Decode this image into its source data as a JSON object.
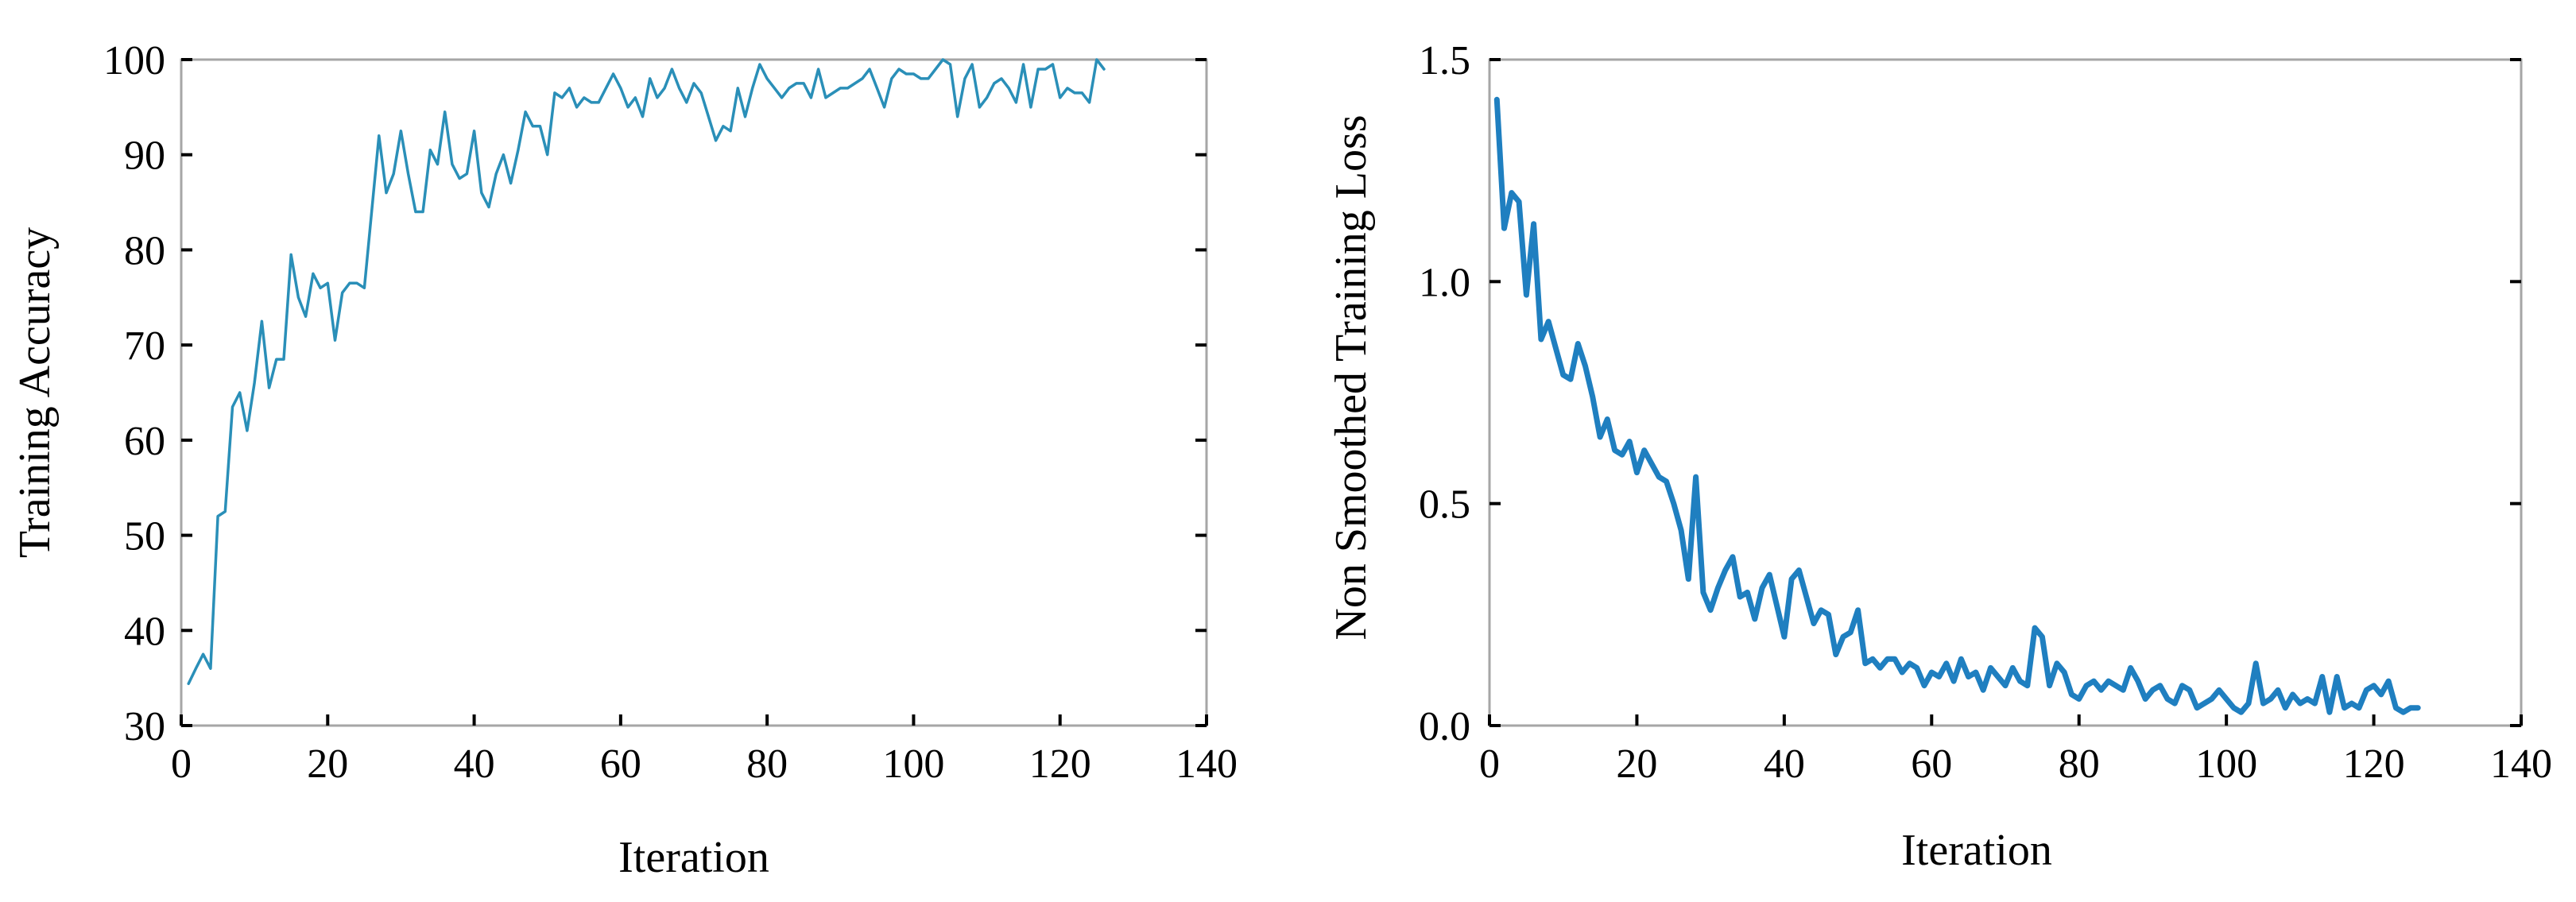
{
  "chart_data": [
    {
      "type": "line",
      "xlabel": "Iteration",
      "ylabel": "Training Accuracy",
      "xlim": [
        0,
        140
      ],
      "ylim": [
        30,
        100
      ],
      "xticks": [
        "0",
        "20",
        "40",
        "60",
        "80",
        "100",
        "120",
        "140"
      ],
      "yticks": [
        "30",
        "40",
        "50",
        "60",
        "70",
        "80",
        "90",
        "100"
      ],
      "grid": false,
      "color": "#2a8fb8",
      "series": [
        {
          "x": [
            1,
            2,
            3,
            4,
            5,
            6,
            7,
            8,
            9,
            10,
            11,
            12,
            13,
            14,
            15,
            16,
            17,
            18,
            19,
            20,
            21,
            22,
            23,
            24,
            25,
            26,
            27,
            28,
            29,
            30,
            31,
            32,
            33,
            34,
            35,
            36,
            37,
            38,
            39,
            40,
            41,
            42,
            43,
            44,
            45,
            46,
            47,
            48,
            49,
            50,
            51,
            52,
            53,
            54,
            55,
            56,
            57,
            58,
            59,
            60,
            61,
            62,
            63,
            64,
            65,
            66,
            67,
            68,
            69,
            70,
            71,
            72,
            73,
            74,
            75,
            76,
            77,
            78,
            79,
            80,
            81,
            82,
            83,
            84,
            85,
            86,
            87,
            88,
            89,
            90,
            91,
            92,
            93,
            94,
            95,
            96,
            97,
            98,
            99,
            100,
            101,
            102,
            103,
            104,
            105,
            106,
            107,
            108,
            109,
            110,
            111,
            112,
            113,
            114,
            115,
            116,
            117,
            118,
            119,
            120,
            121,
            122,
            123,
            124,
            125,
            126
          ],
          "y": [
            34.4,
            36.0,
            37.5,
            36.0,
            52.0,
            52.5,
            63.5,
            65.0,
            61.0,
            66.0,
            72.5,
            65.5,
            68.5,
            68.5,
            79.5,
            75.0,
            73.0,
            77.5,
            76.0,
            76.5,
            70.5,
            75.5,
            76.5,
            76.5,
            76.0,
            84.0,
            92.0,
            86.0,
            88.0,
            92.5,
            88.0,
            84.0,
            84.0,
            90.5,
            89.0,
            94.5,
            89.0,
            87.5,
            88.0,
            92.5,
            86.0,
            84.5,
            88.0,
            90.0,
            87.0,
            90.5,
            94.5,
            93.0,
            93.0,
            90.0,
            96.5,
            96.0,
            97.0,
            95.0,
            96.0,
            95.5,
            95.5,
            97.0,
            98.5,
            97.0,
            95.0,
            96.0,
            94.0,
            98.0,
            96.0,
            97.0,
            99.0,
            97.0,
            95.5,
            97.5,
            96.5,
            94.0,
            91.5,
            93.0,
            92.5,
            97.0,
            94.0,
            97.0,
            99.5,
            98.0,
            97.0,
            96.0,
            97.0,
            97.5,
            97.5,
            96.0,
            99.0,
            96.0,
            96.5,
            97.0,
            97.0,
            97.5,
            98.0,
            99.0,
            97.0,
            95.0,
            98.0,
            99.0,
            98.5,
            98.5,
            98.0,
            98.0,
            99.0,
            100.0,
            99.5,
            94.0,
            98.0,
            99.5,
            95.0,
            96.0,
            97.5,
            98.0,
            97.0,
            95.5,
            99.5,
            95.0,
            99.0,
            99.0,
            99.5,
            96.0,
            97.0,
            96.5,
            96.5,
            95.5,
            100.0,
            99.0
          ]
        }
      ]
    },
    {
      "type": "line",
      "xlabel": "Iteration",
      "ylabel": "Non Smoothed Training Loss",
      "xlim": [
        0,
        140
      ],
      "ylim": [
        0,
        1.5
      ],
      "xticks": [
        "0",
        "20",
        "40",
        "60",
        "80",
        "100",
        "120",
        "140"
      ],
      "yticks": [
        "0.0",
        "0.5",
        "1.0",
        "1.5"
      ],
      "grid": false,
      "color": "#1f7fc0",
      "series": [
        {
          "x": [
            1,
            2,
            3,
            4,
            5,
            6,
            7,
            8,
            9,
            10,
            11,
            12,
            13,
            14,
            15,
            16,
            17,
            18,
            19,
            20,
            21,
            22,
            23,
            24,
            25,
            26,
            27,
            28,
            29,
            30,
            31,
            32,
            33,
            34,
            35,
            36,
            37,
            38,
            39,
            40,
            41,
            42,
            43,
            44,
            45,
            46,
            47,
            48,
            49,
            50,
            51,
            52,
            53,
            54,
            55,
            56,
            57,
            58,
            59,
            60,
            61,
            62,
            63,
            64,
            65,
            66,
            67,
            68,
            69,
            70,
            71,
            72,
            73,
            74,
            75,
            76,
            77,
            78,
            79,
            80,
            81,
            82,
            83,
            84,
            85,
            86,
            87,
            88,
            89,
            90,
            91,
            92,
            93,
            94,
            95,
            96,
            97,
            98,
            99,
            100,
            101,
            102,
            103,
            104,
            105,
            106,
            107,
            108,
            109,
            110,
            111,
            112,
            113,
            114,
            115,
            116,
            117,
            118,
            119,
            120,
            121,
            122,
            123,
            124,
            125,
            126
          ],
          "y": [
            1.41,
            1.12,
            1.2,
            1.18,
            0.97,
            1.13,
            0.87,
            0.91,
            0.85,
            0.79,
            0.78,
            0.86,
            0.81,
            0.74,
            0.65,
            0.69,
            0.62,
            0.61,
            0.64,
            0.57,
            0.62,
            0.59,
            0.56,
            0.55,
            0.5,
            0.44,
            0.33,
            0.56,
            0.3,
            0.26,
            0.31,
            0.35,
            0.38,
            0.29,
            0.3,
            0.24,
            0.31,
            0.34,
            0.27,
            0.2,
            0.33,
            0.35,
            0.29,
            0.23,
            0.26,
            0.25,
            0.16,
            0.2,
            0.21,
            0.26,
            0.14,
            0.15,
            0.13,
            0.15,
            0.15,
            0.12,
            0.14,
            0.13,
            0.09,
            0.12,
            0.11,
            0.14,
            0.1,
            0.15,
            0.11,
            0.12,
            0.08,
            0.13,
            0.11,
            0.09,
            0.13,
            0.1,
            0.09,
            0.22,
            0.2,
            0.09,
            0.14,
            0.12,
            0.07,
            0.06,
            0.09,
            0.1,
            0.08,
            0.1,
            0.09,
            0.08,
            0.13,
            0.1,
            0.06,
            0.08,
            0.09,
            0.06,
            0.05,
            0.09,
            0.08,
            0.04,
            0.05,
            0.06,
            0.08,
            0.06,
            0.04,
            0.03,
            0.05,
            0.14,
            0.05,
            0.06,
            0.08,
            0.04,
            0.07,
            0.05,
            0.06,
            0.05,
            0.11,
            0.03,
            0.11,
            0.04,
            0.05,
            0.04,
            0.08,
            0.09,
            0.07,
            0.1,
            0.04,
            0.03,
            0.04,
            0.04
          ]
        }
      ]
    }
  ]
}
